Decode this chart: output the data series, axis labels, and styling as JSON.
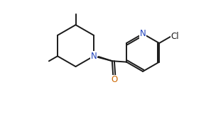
{
  "bg_color": "#ffffff",
  "line_color": "#1a1a1a",
  "N_color": "#2244bb",
  "O_color": "#cc6600",
  "line_width": 1.4,
  "font_size": 8.5,
  "xlim": [
    0,
    10
  ],
  "ylim": [
    0,
    6
  ],
  "figsize": [
    2.9,
    1.71
  ],
  "dpi": 100
}
